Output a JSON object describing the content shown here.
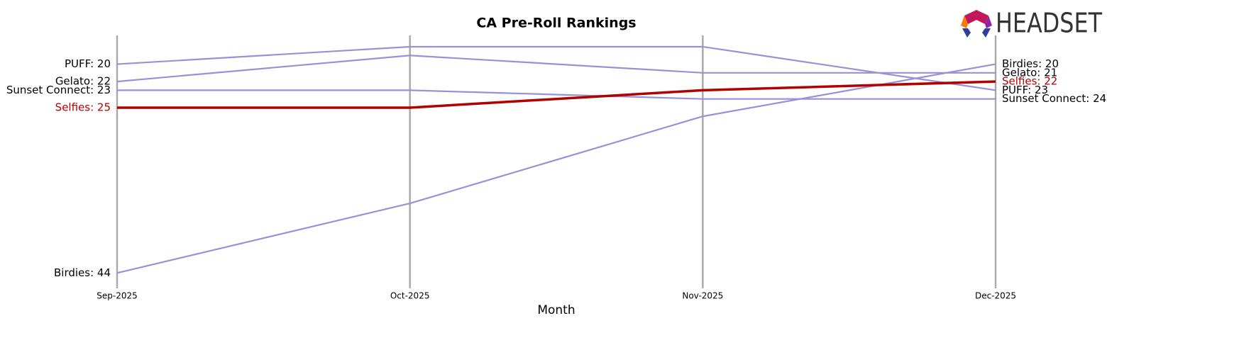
{
  "chart_data": {
    "type": "bump",
    "title": "CA Pre-Roll Rankings",
    "x_label": "Month",
    "logo_text": "HEADSET",
    "categories": [
      "Sep-2025",
      "Oct-2025",
      "Nov-2025",
      "Dec-2025"
    ],
    "ylim": [
      16.7,
      45.6
    ],
    "y_inverted": true,
    "grid": true,
    "series": [
      {
        "name": "PUFF",
        "color": "#9b8fd6",
        "values": [
          20,
          18,
          18,
          23
        ],
        "value_labels": [
          "PUFF: 20",
          null,
          null,
          "PUFF: 23"
        ]
      },
      {
        "name": "Gelato",
        "color": "#9b8fd6",
        "values": [
          22,
          19,
          21,
          21
        ],
        "value_labels": [
          "Gelato: 22",
          null,
          null,
          "Gelato: 21"
        ]
      },
      {
        "name": "Sunset Connect",
        "color": "#9b8fd6",
        "values": [
          23,
          23,
          24,
          24
        ],
        "value_labels": [
          "Sunset Connect: 23",
          null,
          null,
          "Sunset Connect: 24"
        ]
      },
      {
        "name": "Birdies",
        "color": "#9b8fd6",
        "values": [
          44,
          36,
          26,
          20
        ],
        "value_labels": [
          "Birdies: 44",
          null,
          null,
          "Birdies: 20"
        ]
      },
      {
        "name": "Selfies",
        "color": "#b30000",
        "highlight": true,
        "values": [
          25,
          25,
          23,
          22
        ],
        "value_labels": [
          "Selfies: 25",
          null,
          null,
          "Selfies: 22"
        ]
      }
    ]
  }
}
